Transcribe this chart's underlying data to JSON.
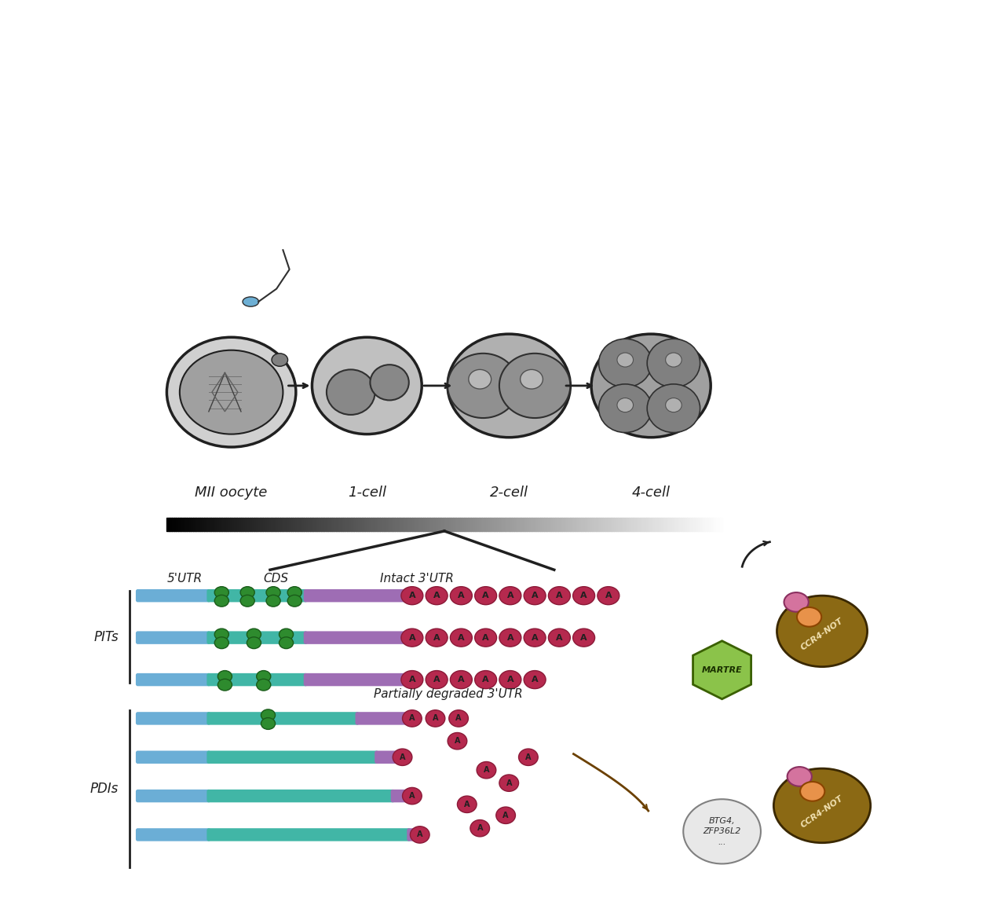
{
  "background_color": "#ffffff",
  "colors": {
    "blue_utr": "#6baed6",
    "green_cds": "#74c476",
    "teal_cds": "#41b6a6",
    "purple_utr3": "#9e6db4",
    "poly_a": "#b5294e",
    "poly_a_dark": "#8b1a38",
    "green_protein": "#2e8b2e",
    "brown_ccr4not": "#8B6914",
    "brown_ccr4not2": "#A0784A",
    "light_green_martre": "#8db85a",
    "gray_sperm_head": "#6dafd4",
    "dark_gray": "#404040",
    "medium_gray": "#808080",
    "light_gray": "#b0b0b0",
    "white": "#ffffff",
    "pink_enzyme": "#e8a0c0",
    "orange_enzyme": "#e8924a",
    "btg4_fill": "#e8e8e8"
  },
  "stage_labels": [
    "MII oocyte",
    "1-cell",
    "2-cell",
    "4-cell"
  ],
  "section_labels": {
    "PITs": "PITs",
    "PDIs": "PDIs",
    "intact_label": "Intact 3'UTR",
    "partial_label": "Partially degraded 3'UTR",
    "utr5_label": "5'UTR",
    "cds_label": "CDS",
    "martre_label": "MARTRE",
    "ccr4not_label": "CCR4-NOT",
    "btg4_label": "BTG4,\nZFP36L2\n..."
  }
}
